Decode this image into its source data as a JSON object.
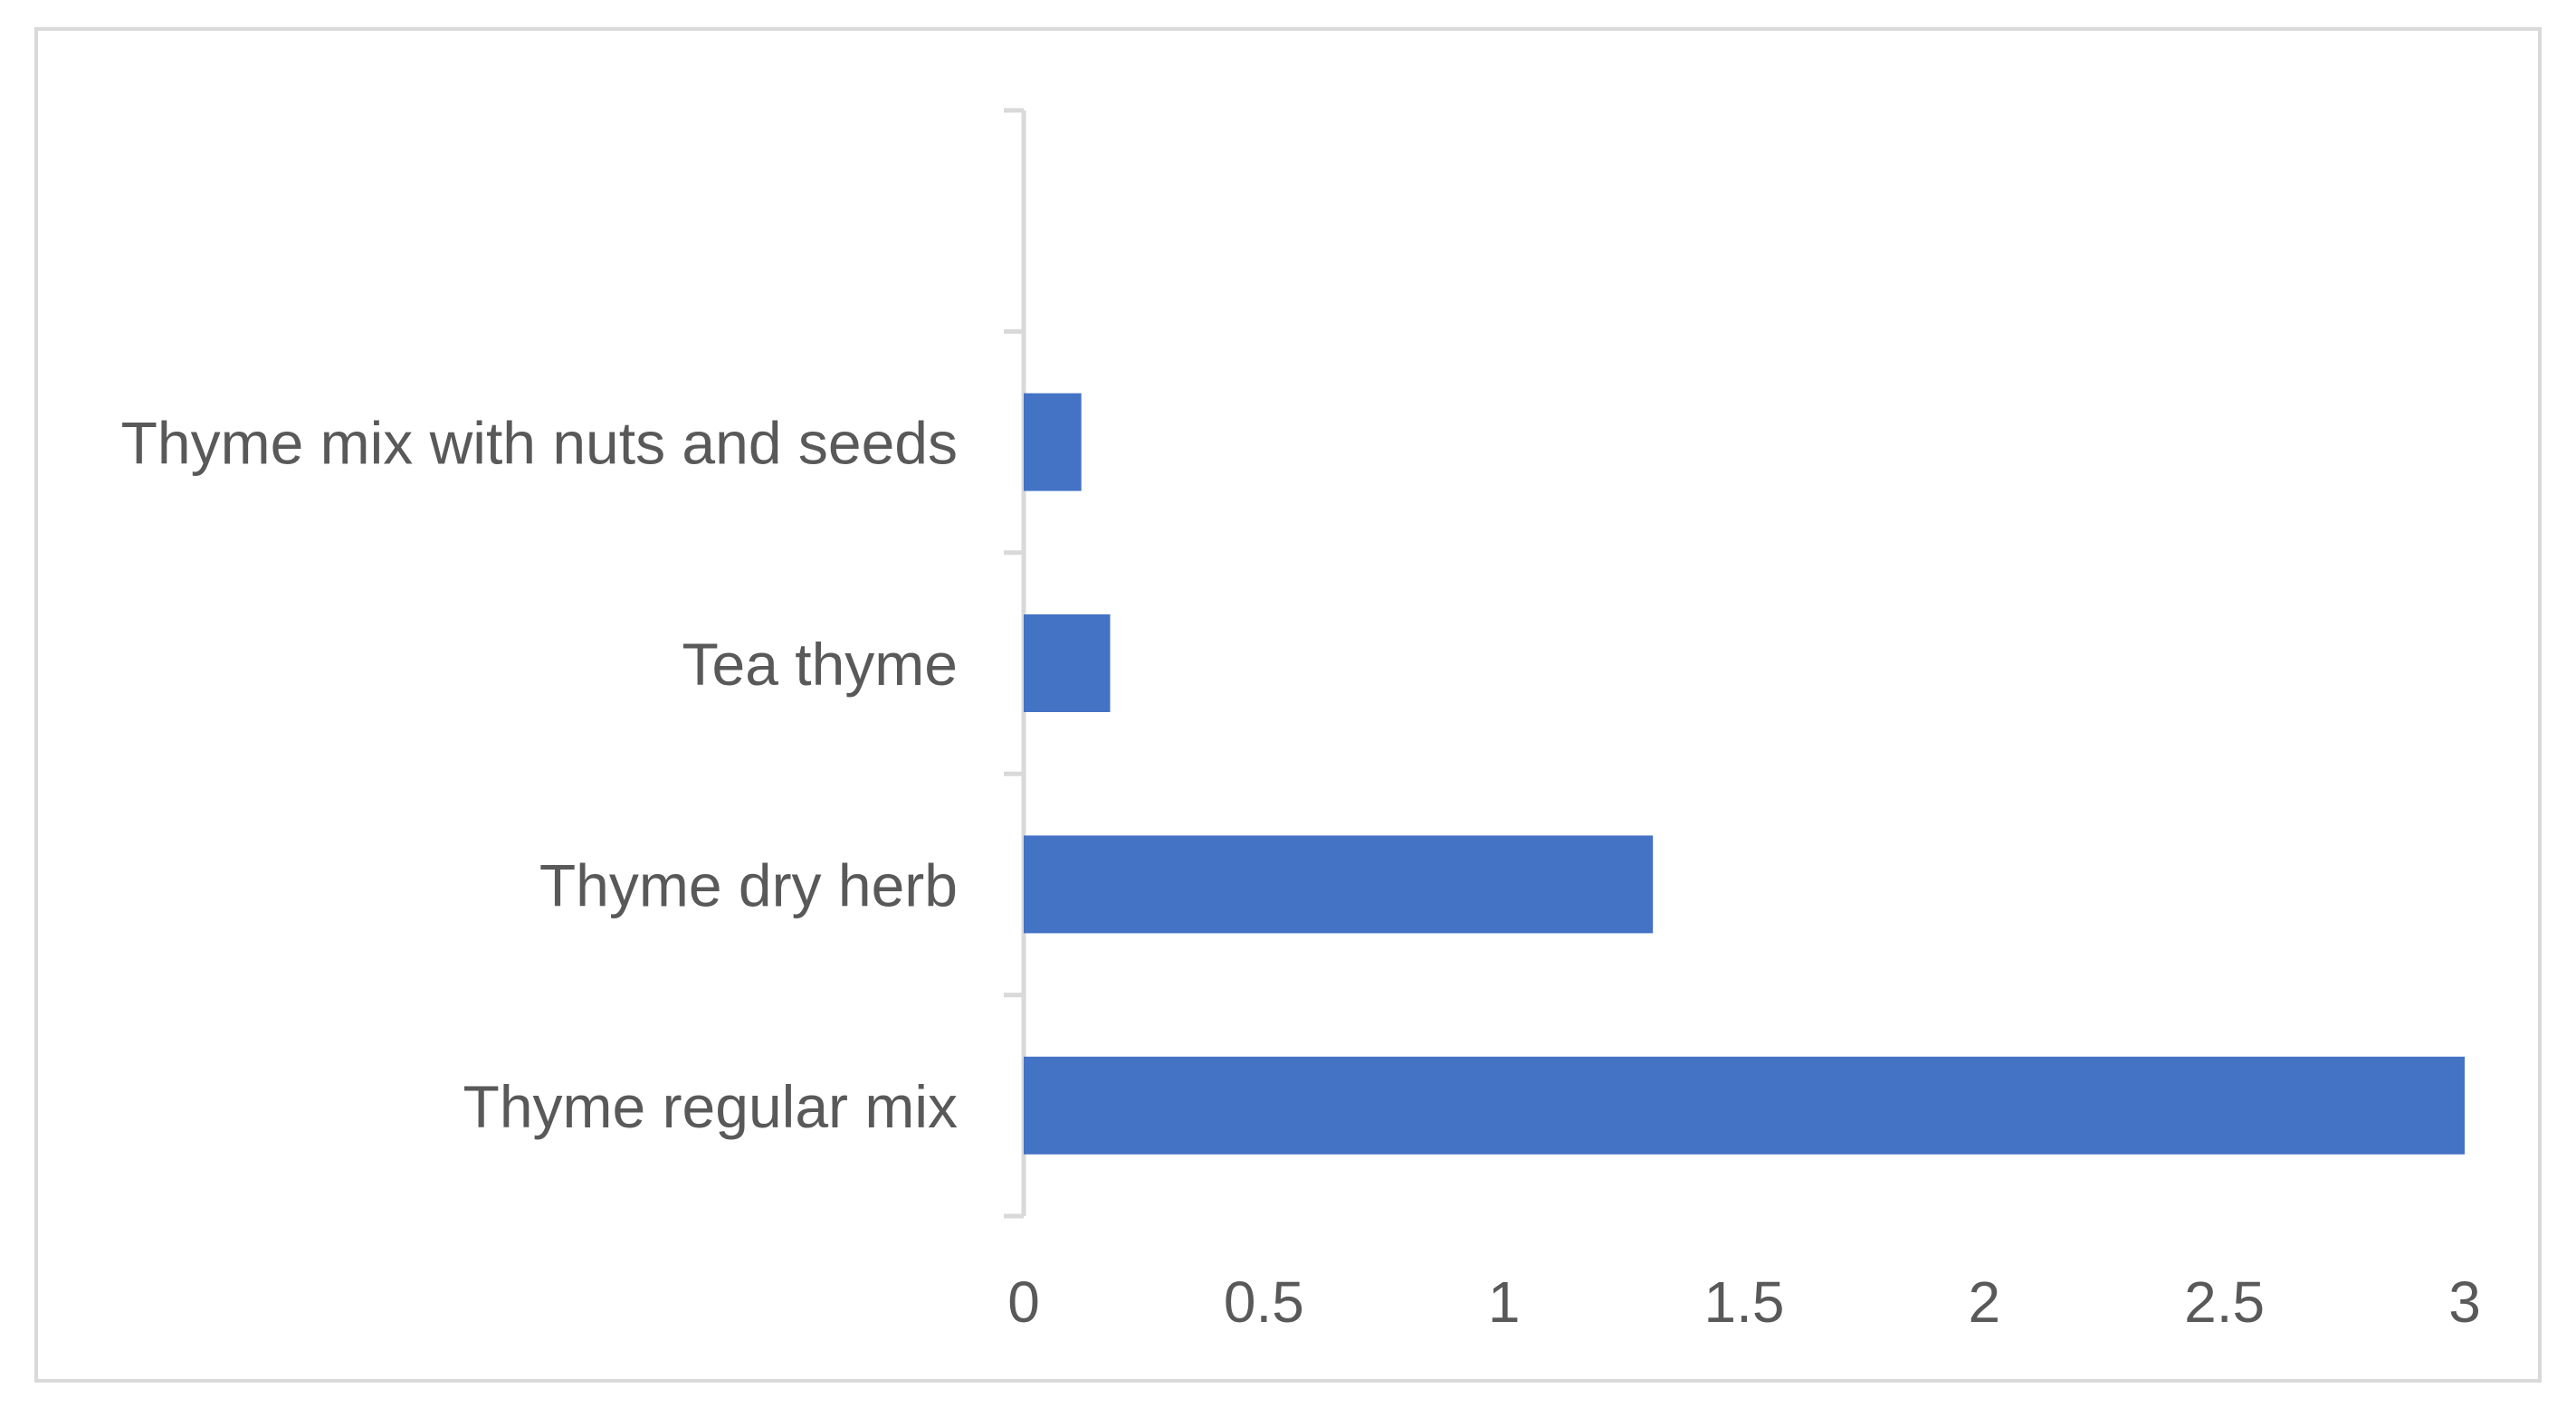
{
  "chart_data": {
    "type": "bar",
    "orientation": "horizontal",
    "categories": [
      "Thyme regular mix",
      "Thyme dry herb",
      "Tea thyme",
      "Thyme mix with nuts and seeds",
      ""
    ],
    "values": [
      3.0,
      1.31,
      0.18,
      0.12,
      null
    ],
    "xlim": [
      0,
      3
    ],
    "xticks": [
      "0",
      "0.5",
      "1",
      "1.5",
      "2",
      "2.5",
      "3"
    ],
    "bar_color": "#4472c4",
    "axis_color": "#d9d9d9",
    "label_color": "#595959",
    "grid": false,
    "legend": "none"
  }
}
